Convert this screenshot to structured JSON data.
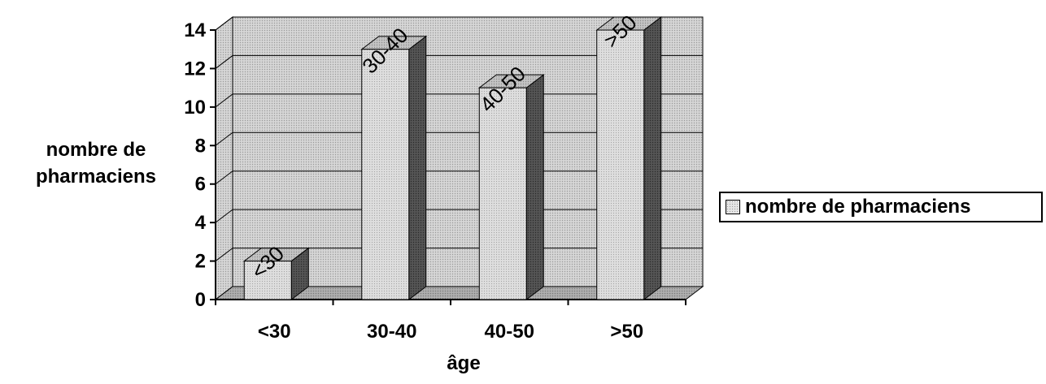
{
  "chart_data": {
    "type": "bar",
    "categories": [
      "<30",
      "30-40",
      "40-50",
      ">50"
    ],
    "series": [
      {
        "name": "nombre de pharmaciens",
        "values": [
          2,
          13,
          11,
          14
        ]
      }
    ],
    "data_labels": [
      "<30",
      "30-40",
      "40-50",
      ">50"
    ],
    "title": "",
    "xlabel": "âge",
    "ylabel": "nombre de pharmaciens",
    "ylim": [
      0,
      14
    ],
    "yticks": [
      "0",
      "2",
      "4",
      "6",
      "8",
      "10",
      "12",
      "14"
    ],
    "grid": true,
    "legend_position": "right",
    "bar_style": "3d-stippled",
    "colors": {
      "bar_front": "#d0d0d0",
      "bar_side": "#4a4a4a",
      "wall": "#cfcfcf",
      "floor": "#a8a8a8"
    }
  },
  "ylabel_line1": "nombre de",
  "ylabel_line2": "pharmaciens",
  "legend_label": "nombre de pharmaciens"
}
